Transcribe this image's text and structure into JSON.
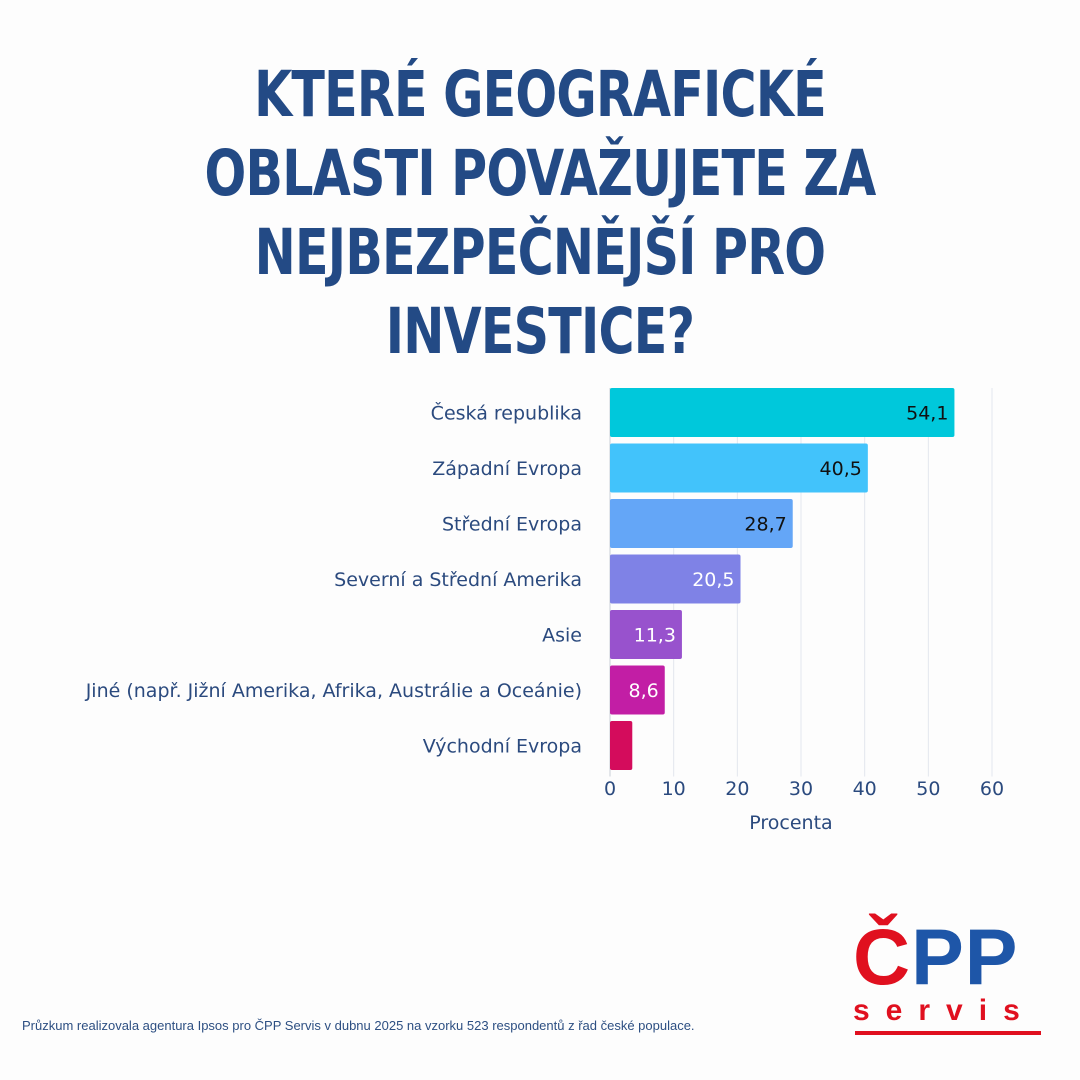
{
  "title": "KTERÉ GEOGRAFICKÉ OBLASTI POVAŽUJETE ZA NEJBEZPEČNĚJŠÍ PRO INVESTICE?",
  "footnote": "Průzkum realizovala agentura Ipsos pro ČPP Servis v dubnu 2025 na vzorku 523 respondentů z řad české populace.",
  "logo": {
    "main_red": "Č",
    "main_blue": "PP",
    "sub": "servis"
  },
  "colors": {
    "title": "#234a85",
    "logo_red": "#e0101f",
    "logo_blue": "#1e56a8",
    "bars": [
      "#00c8db",
      "#42c3fb",
      "#64a6f7",
      "#7f82e6",
      "#9852cd",
      "#c21ea5",
      "#d40c5c"
    ]
  },
  "chart_data": {
    "type": "bar",
    "orientation": "horizontal",
    "categories": [
      "Česká republika",
      "Západní Evropa",
      "Střední Evropa",
      "Severní a Střední Amerika",
      "Asie",
      "Jiné (např. Jižní Amerika, Afrika, Austrálie a Oceánie)",
      "Východní Evropa"
    ],
    "values": [
      54.1,
      40.5,
      28.7,
      20.5,
      11.3,
      8.6,
      3.5
    ],
    "data_labels": [
      "54,1",
      "40,5",
      "28,7",
      "20,5",
      "11,3",
      "8,6",
      ""
    ],
    "xlabel": "Procenta",
    "xlim": [
      0,
      60
    ],
    "xticks": [
      0,
      10,
      20,
      30,
      40,
      50,
      60
    ],
    "grid": "vertical"
  }
}
